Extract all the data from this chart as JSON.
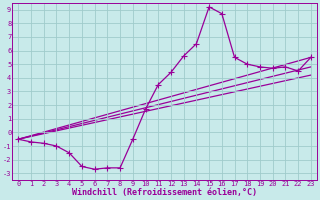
{
  "background_color": "#c8eaea",
  "grid_color": "#a0cccc",
  "line_color": "#990099",
  "marker": "+",
  "markersize": 4,
  "linewidth": 0.9,
  "xlim": [
    -0.5,
    23.5
  ],
  "ylim": [
    -3.5,
    9.5
  ],
  "xlabel": "Windchill (Refroidissement éolien,°C)",
  "xlabel_fontsize": 6,
  "yticks": [
    -3,
    -2,
    -1,
    0,
    1,
    2,
    3,
    4,
    5,
    6,
    7,
    8,
    9
  ],
  "xticks": [
    0,
    1,
    2,
    3,
    4,
    5,
    6,
    7,
    8,
    9,
    10,
    11,
    12,
    13,
    14,
    15,
    16,
    17,
    18,
    19,
    20,
    21,
    22,
    23
  ],
  "tick_fontsize": 5,
  "series_x": [
    0,
    1,
    2,
    3,
    4,
    5,
    6,
    7,
    8,
    9,
    10,
    11,
    12,
    13,
    14,
    15,
    16,
    17,
    18,
    19,
    20,
    21,
    22,
    23
  ],
  "series_y": [
    -0.5,
    -0.7,
    -0.8,
    -1.0,
    -1.5,
    -2.5,
    -2.7,
    -2.6,
    -2.6,
    -0.5,
    1.7,
    3.5,
    4.4,
    5.6,
    6.5,
    9.2,
    8.7,
    5.5,
    5.0,
    4.8,
    4.7,
    4.8,
    4.5,
    5.5
  ],
  "extra_lines": [
    {
      "x": [
        0,
        23
      ],
      "y": [
        -0.5,
        5.5
      ]
    },
    {
      "x": [
        0,
        23
      ],
      "y": [
        -0.5,
        4.8
      ]
    },
    {
      "x": [
        0,
        23
      ],
      "y": [
        -0.5,
        4.2
      ]
    }
  ]
}
